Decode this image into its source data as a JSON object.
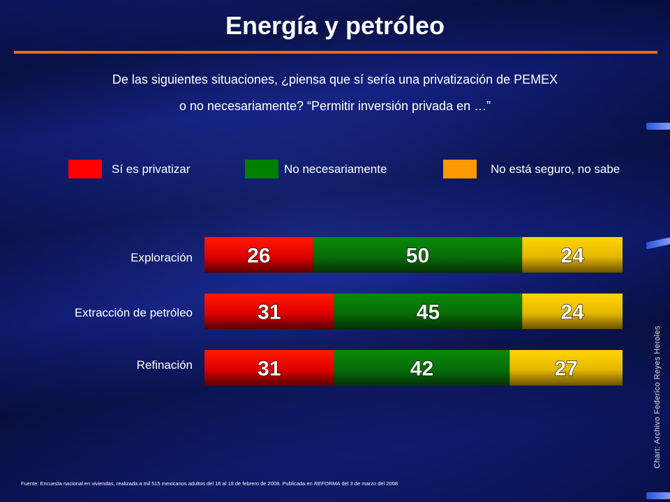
{
  "title": "Energía y petróleo",
  "question": {
    "line1": "De las siguientes situaciones, ¿piensa que sí sería una privatización de PEMEX",
    "line2": "o no necesariamente? “Permitir inversión privada en …”"
  },
  "legend": [
    {
      "label": "Sí es privatizar",
      "color": "#ff0000"
    },
    {
      "label": "No necesariamente",
      "color": "#008000"
    },
    {
      "label": "No está seguro, no sabe",
      "color": "#ff9900"
    }
  ],
  "chart_data": {
    "type": "bar",
    "orientation": "horizontal",
    "stacked": true,
    "categories": [
      "Exploración",
      "Extracción de petróleo",
      "Refinación"
    ],
    "series": [
      {
        "name": "Sí es privatizar",
        "values": [
          26,
          31,
          31
        ],
        "color": "#ff0000"
      },
      {
        "name": "No necesariamente",
        "values": [
          50,
          45,
          42
        ],
        "color": "#008000"
      },
      {
        "name": "No está seguro, no sabe",
        "values": [
          24,
          24,
          27
        ],
        "color": "#ffcc00"
      }
    ],
    "xlim": [
      0,
      100
    ],
    "grid": false,
    "legend_position": "top"
  },
  "side_credit": "Chart: Archivo Federico Reyes Heroles",
  "footnote": {
    "before": "Fuente: Encuesta nacional en viviendas, realizada a mil 515 mexicanos adultos del 16 al 18 de febrero de 2008. Publicada en ",
    "publication": "REFORMA",
    "after": " del 3 de marzo del 2008"
  }
}
